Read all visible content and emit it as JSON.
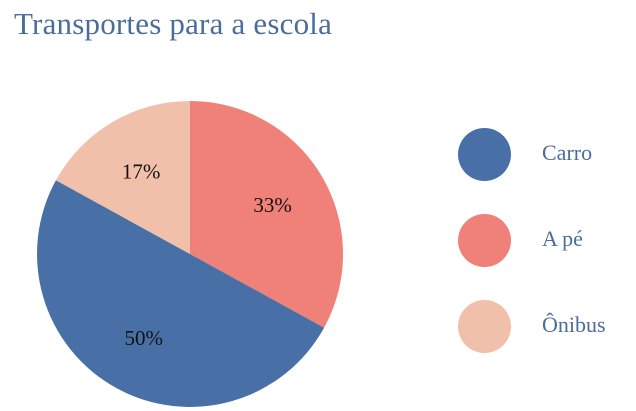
{
  "chart_data": {
    "type": "pie",
    "title": "Transportes para a escola",
    "slices": [
      {
        "label": "Carro",
        "value": 50,
        "display": "50%",
        "color": "#4870a6"
      },
      {
        "label": "A pé",
        "value": 33,
        "display": "33%",
        "color": "#ef8178"
      },
      {
        "label": "Ônibus",
        "value": 17,
        "display": "17%",
        "color": "#f0c0ab"
      }
    ],
    "legend_position": "right"
  }
}
